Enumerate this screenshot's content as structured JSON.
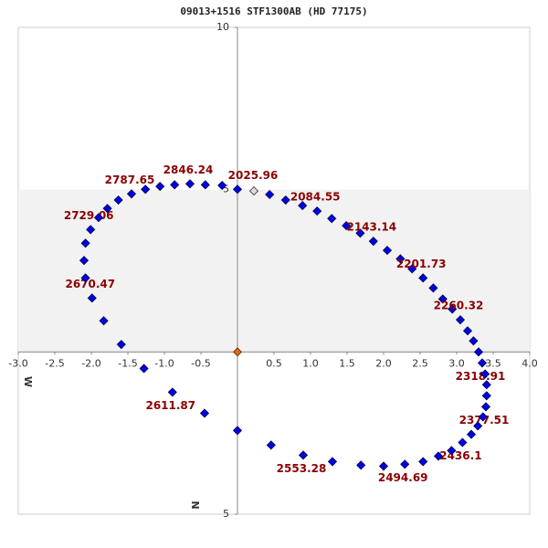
{
  "chart_data": {
    "type": "scatter",
    "title": "09013+1516 STF1300AB (HD 77175)",
    "x_label": "W",
    "y_label": "N",
    "x": [
      0,
      0.44,
      0.66,
      0.89,
      1.09,
      1.29,
      1.49,
      1.68,
      1.86,
      2.05,
      2.23,
      2.39,
      2.54,
      2.68,
      2.81,
      2.94,
      3.05,
      3.15,
      3.23,
      3.3,
      3.35,
      3.39,
      3.41,
      3.41,
      3.4,
      3.36,
      3.29,
      3.2,
      3.08,
      2.93,
      2.75,
      2.54,
      2.29,
      2.0,
      1.69,
      1.3,
      0.9,
      0.46,
      0,
      -0.45,
      -0.89,
      -1.28,
      -1.59,
      -1.83,
      -1.99,
      -2.08,
      -2.1,
      -2.08,
      -2.01,
      -1.9,
      -1.78,
      -1.63,
      -1.45,
      -1.26,
      -1.06,
      -0.86,
      -0.65,
      -0.44,
      -0.21
    ],
    "y": [
      5.01,
      4.85,
      4.68,
      4.51,
      4.34,
      4.11,
      3.89,
      3.66,
      3.41,
      3.13,
      2.87,
      2.56,
      2.28,
      1.97,
      1.63,
      1.32,
      0.99,
      0.65,
      0.34,
      0,
      -0.34,
      -0.68,
      -1.01,
      -1.35,
      -1.69,
      -2.0,
      -2.28,
      -2.54,
      -2.79,
      -3.04,
      -3.21,
      -3.38,
      -3.46,
      -3.52,
      -3.49,
      -3.38,
      -3.18,
      -2.87,
      -2.42,
      -1.89,
      -1.24,
      -0.51,
      0.23,
      0.96,
      1.66,
      2.28,
      2.82,
      3.35,
      3.77,
      4.14,
      4.42,
      4.68,
      4.87,
      5.01,
      5.1,
      5.15,
      5.18,
      5.15,
      5.13
    ],
    "labels": [
      "2025.96",
      null,
      null,
      null,
      "2084.55",
      null,
      null,
      null,
      "2143.14",
      null,
      null,
      null,
      "2201.73",
      null,
      null,
      null,
      "2260.32",
      null,
      null,
      null,
      "2318.91",
      null,
      null,
      null,
      "2377.51",
      null,
      null,
      null,
      "2436.1",
      null,
      null,
      null,
      "2494.69",
      null,
      null,
      null,
      "2553.28",
      null,
      null,
      null,
      "2611.87",
      null,
      null,
      null,
      "2670.47",
      null,
      null,
      null,
      "2729.06",
      null,
      null,
      null,
      "2787.65",
      null,
      null,
      null,
      "2846.24",
      null,
      null
    ],
    "color": "#0000e0",
    "label_color": "#8b0000",
    "primary": {
      "x": 0,
      "y": 0,
      "color": "#d2691e"
    },
    "current": {
      "x": 0.225,
      "y": 4.96,
      "color": "#dddddd"
    },
    "band": [
      0,
      5
    ],
    "band_color": "#f2f2f2",
    "xlim": [
      -3,
      4
    ],
    "xticks": [
      {
        "value": -3,
        "label": "-3.0"
      },
      -2.5,
      {
        "value": -2,
        "label": "-2.0"
      },
      -1.5,
      {
        "value": -1,
        "label": "-1.0"
      },
      -0.5,
      0.5,
      {
        "value": 1,
        "label": "1.0"
      },
      1.5,
      {
        "value": 2,
        "label": "2.0"
      },
      2.5,
      {
        "value": 3,
        "label": "3.0"
      },
      3.5,
      {
        "value": 4,
        "label": "4.0"
      }
    ],
    "ylim": [
      -5,
      10
    ],
    "yticks": [
      {
        "value": -5,
        "label": "5"
      },
      5,
      10
    ]
  }
}
